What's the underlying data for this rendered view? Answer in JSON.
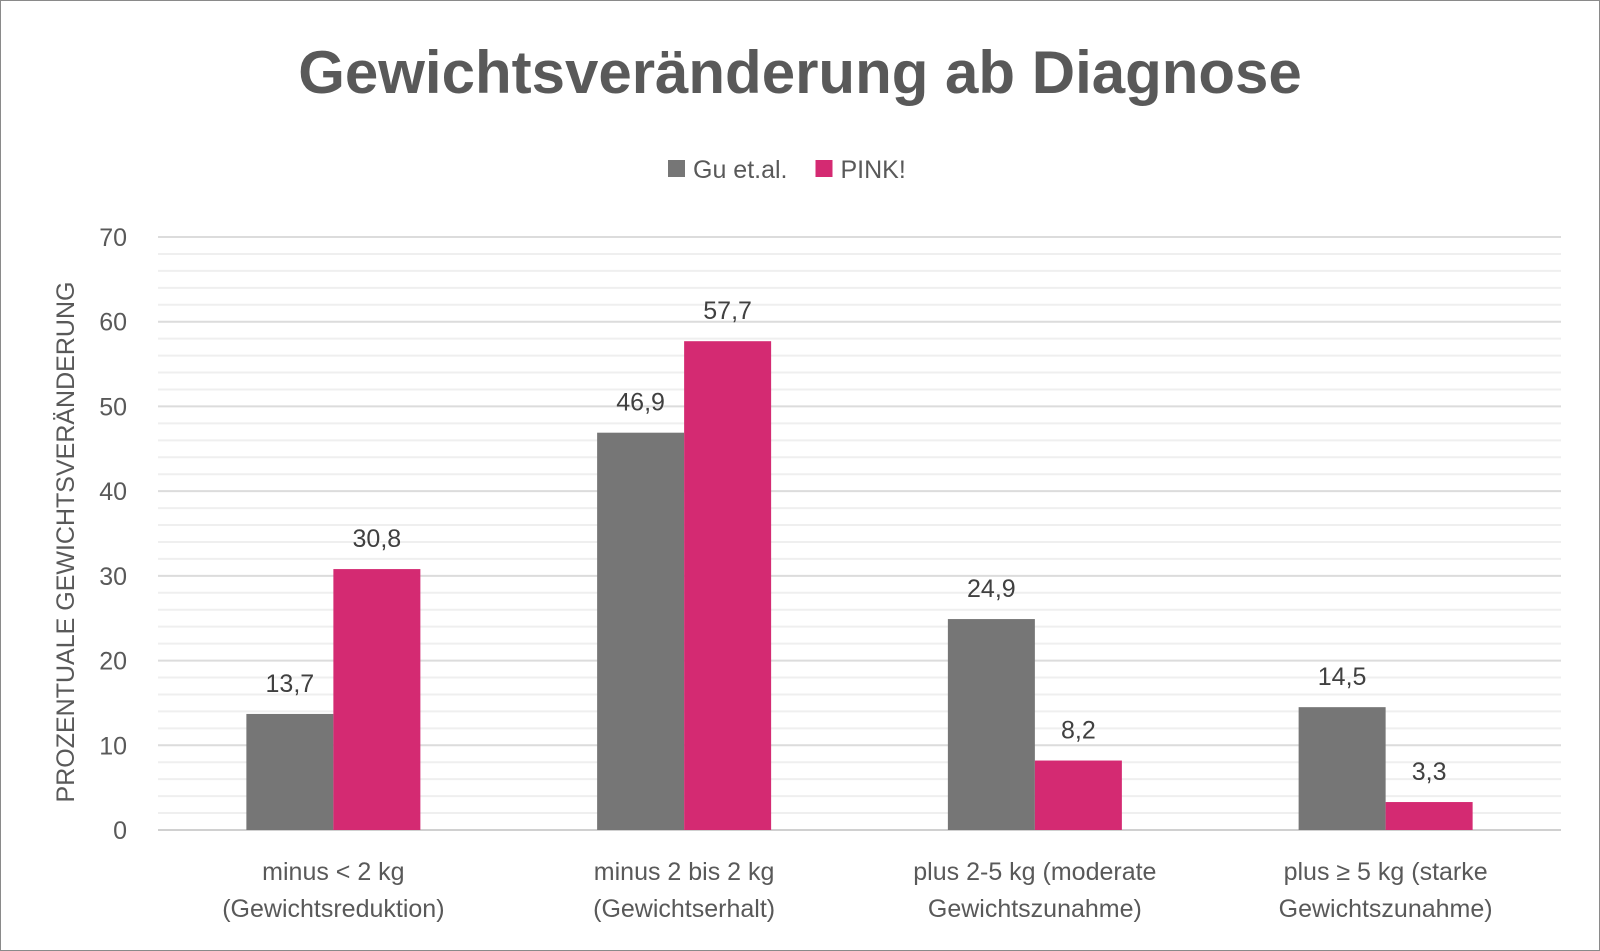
{
  "chart_data": {
    "type": "bar",
    "title": "Gewichtsveränderung ab Diagnose",
    "ylabel": "PROZENTUALE GEWICHTSVERÄNDERUNG",
    "xlabel": "",
    "ylim": [
      0,
      70
    ],
    "yticks": [
      0,
      10,
      20,
      30,
      40,
      50,
      60,
      70
    ],
    "grid": true,
    "legend": "top-center",
    "categories": [
      [
        "minus < 2 kg",
        "(Gewichtsreduktion)"
      ],
      [
        "minus 2 bis 2 kg",
        "(Gewichtserhalt)"
      ],
      [
        "plus 2-5 kg (moderate",
        "Gewichtszunahme)"
      ],
      [
        "plus ≥ 5 kg (starke",
        "Gewichtszunahme)"
      ]
    ],
    "series": [
      {
        "name": "Gu et.al.",
        "color": "#767676",
        "values": [
          13.7,
          46.9,
          24.9,
          14.5
        ],
        "labels": [
          "13,7",
          "46,9",
          "24,9",
          "14,5"
        ]
      },
      {
        "name": "PINK!",
        "color": "#D42A72",
        "values": [
          30.8,
          57.7,
          8.2,
          3.3
        ],
        "labels": [
          "30,8",
          "57,7",
          "8,2",
          "3,3"
        ]
      }
    ]
  }
}
